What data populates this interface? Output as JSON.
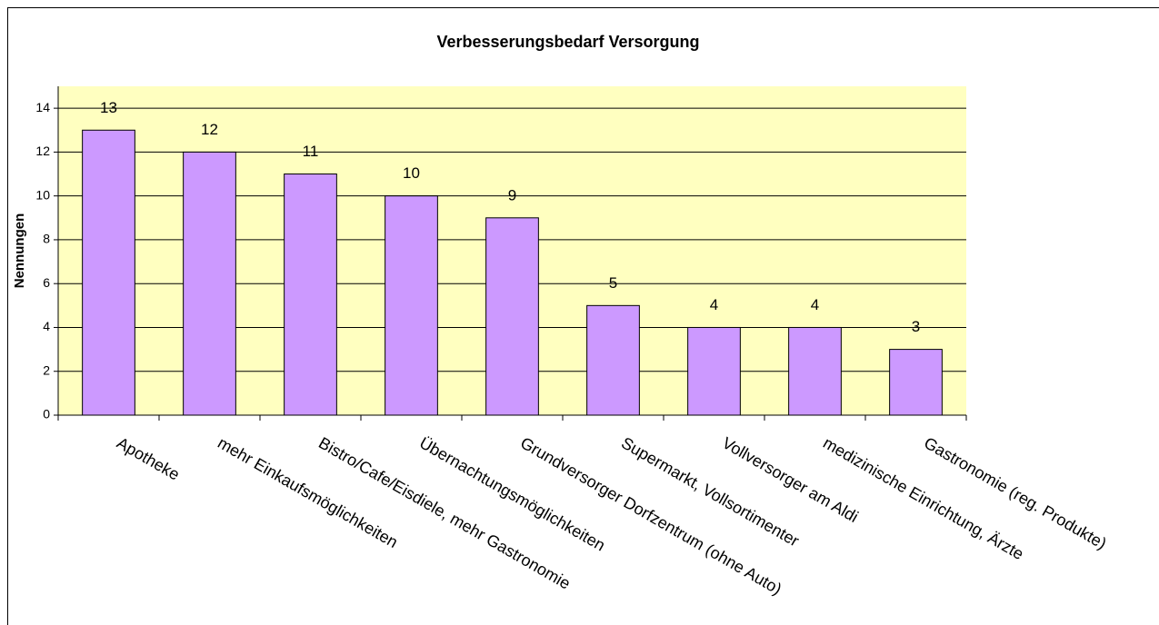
{
  "chart_data": {
    "type": "bar",
    "title": "Verbesserungsbedarf Versorgung",
    "y_label": "Nennungen",
    "categories": [
      "Apotheke",
      "mehr Einkaufsmöglichkeiten",
      "Bistro/Cafe/Eisdiele, mehr Gastronomie",
      "Übernachtungsmöglichkeiten",
      "Grundversorger Dorfzentrum (ohne Auto)",
      "Supermarkt, Vollsortimenter",
      "Vollversorger am Aldi",
      "medizinische Einrichtung, Ärzte",
      "Gastronomie (reg. Produkte)"
    ],
    "values": [
      13,
      12,
      11,
      10,
      9,
      5,
      4,
      4,
      3
    ],
    "color": "#cc99ff",
    "ylim": [
      0,
      15
    ],
    "yticks": [
      0,
      2,
      4,
      6,
      8,
      10,
      12,
      14
    ],
    "grid": true
  }
}
